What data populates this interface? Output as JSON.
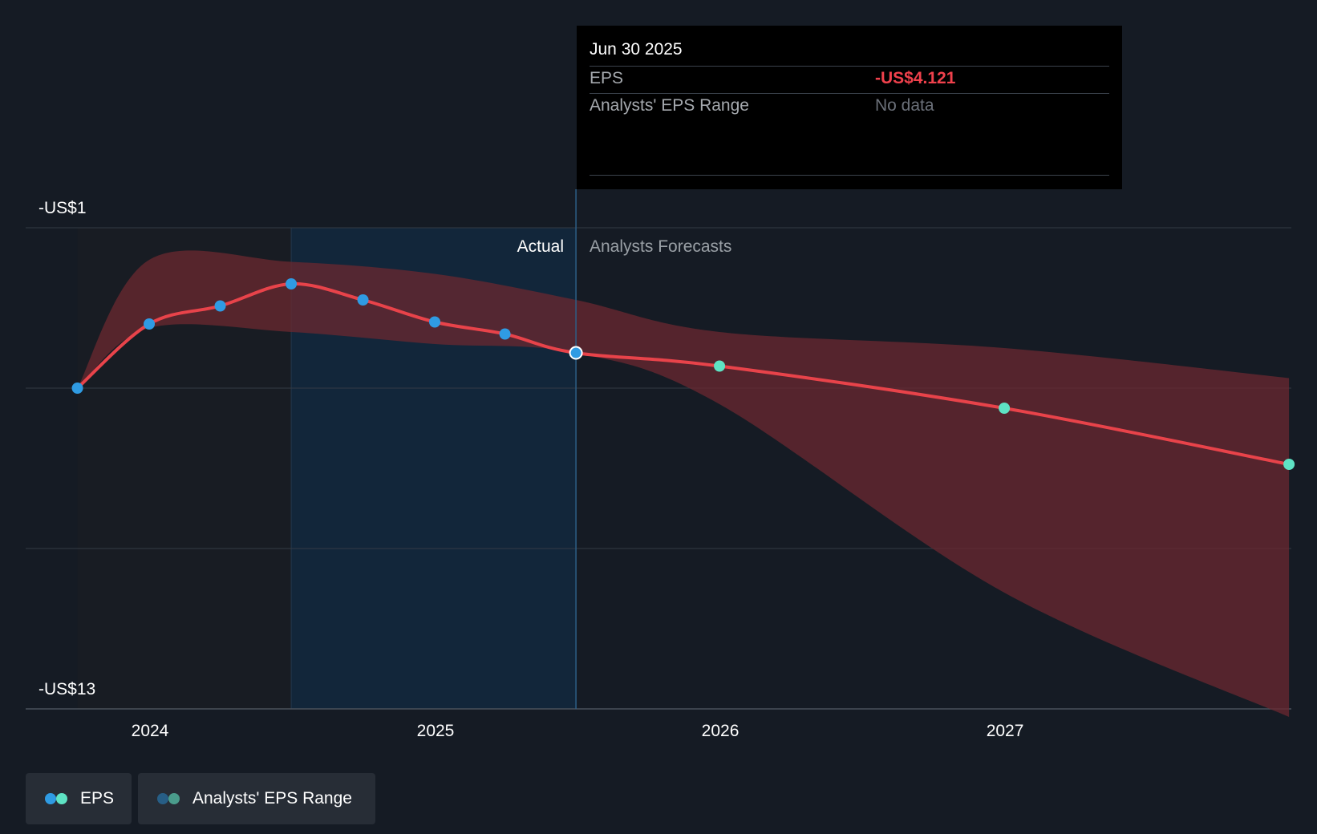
{
  "tooltip": {
    "date": "Jun 30 2025",
    "eps_label": "EPS",
    "eps_value": "-US$4.121",
    "range_label": "Analysts' EPS Range",
    "range_value": "No data"
  },
  "regions": {
    "actual": "Actual",
    "forecast": "Analysts Forecasts"
  },
  "legend": {
    "eps": "EPS",
    "range": "Analysts' EPS Range"
  },
  "colors": {
    "background": "#151b24",
    "eps_line": "#e8434a",
    "actual_point": "#2f9be3",
    "forecast_point": "#5ee3c4",
    "range_fill": "#6b2830",
    "highlight_band": "#12263a"
  },
  "chart_data": {
    "type": "line",
    "ylabel_top": "-US$1",
    "ylabel_bottom": "-US$13",
    "ylim": [
      -13,
      -1
    ],
    "x_ticks": [
      "2024",
      "2025",
      "2026",
      "2027"
    ],
    "actual_end": "2025-06-30",
    "series": [
      {
        "name": "EPS",
        "x": [
          "2023-09-30",
          "2023-12-31",
          "2024-03-31",
          "2024-06-30",
          "2024-09-30",
          "2024-12-31",
          "2025-03-31",
          "2025-06-30",
          "2025-12-31",
          "2026-12-31",
          "2027-12-31"
        ],
        "values": [
          -5.0,
          -3.4,
          -2.95,
          -2.4,
          -2.8,
          -3.35,
          -3.65,
          -4.121,
          -4.45,
          -5.5,
          -6.9
        ]
      }
    ],
    "range": {
      "name": "Analysts' EPS Range",
      "x": [
        "2023-09-30",
        "2023-12-31",
        "2024-06-30",
        "2024-12-31",
        "2025-06-30",
        "2025-12-31",
        "2026-12-31",
        "2027-12-31"
      ],
      "high": [
        -5.0,
        -1.8,
        -1.85,
        -2.15,
        -2.8,
        -3.6,
        -4.0,
        -4.75
      ],
      "low": [
        -5.0,
        -3.5,
        -3.6,
        -3.9,
        -4.121,
        -5.4,
        -10.1,
        -13.2
      ]
    }
  }
}
